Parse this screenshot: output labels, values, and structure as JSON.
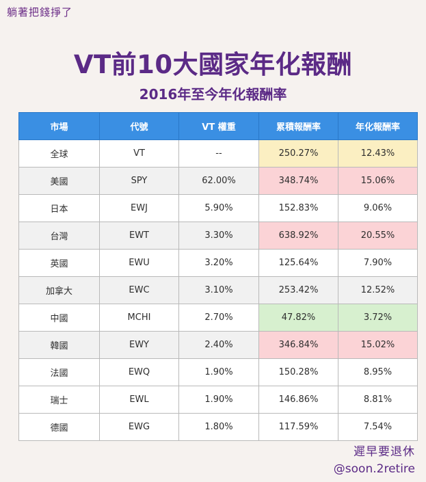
{
  "header": {
    "brand": "躺著把錢掙了",
    "title": "VT前10大國家年化報酬",
    "subtitle": "2016年至今年化報酬率"
  },
  "table": {
    "columns": [
      "市場",
      "代號",
      "VT 權重",
      "累積報酬率",
      "年化報酬率"
    ],
    "rows": [
      {
        "market": "全球",
        "ticker": "VT",
        "weight": "--",
        "cumulative": "250.27%",
        "annualized": "12.43%",
        "highlight": "yellow"
      },
      {
        "market": "美國",
        "ticker": "SPY",
        "weight": "62.00%",
        "cumulative": "348.74%",
        "annualized": "15.06%",
        "highlight": "red"
      },
      {
        "market": "日本",
        "ticker": "EWJ",
        "weight": "5.90%",
        "cumulative": "152.83%",
        "annualized": "9.06%",
        "highlight": "none"
      },
      {
        "market": "台灣",
        "ticker": "EWT",
        "weight": "3.30%",
        "cumulative": "638.92%",
        "annualized": "20.55%",
        "highlight": "red"
      },
      {
        "market": "英國",
        "ticker": "EWU",
        "weight": "3.20%",
        "cumulative": "125.64%",
        "annualized": "7.90%",
        "highlight": "none"
      },
      {
        "market": "加拿大",
        "ticker": "EWC",
        "weight": "3.10%",
        "cumulative": "253.42%",
        "annualized": "12.52%",
        "highlight": "none"
      },
      {
        "market": "中國",
        "ticker": "MCHI",
        "weight": "2.70%",
        "cumulative": "47.82%",
        "annualized": "3.72%",
        "highlight": "green"
      },
      {
        "market": "韓國",
        "ticker": "EWY",
        "weight": "2.40%",
        "cumulative": "346.84%",
        "annualized": "15.02%",
        "highlight": "red"
      },
      {
        "market": "法國",
        "ticker": "EWQ",
        "weight": "1.90%",
        "cumulative": "150.28%",
        "annualized": "8.95%",
        "highlight": "none"
      },
      {
        "market": "瑞士",
        "ticker": "EWL",
        "weight": "1.90%",
        "cumulative": "146.86%",
        "annualized": "8.81%",
        "highlight": "none"
      },
      {
        "market": "德國",
        "ticker": "EWG",
        "weight": "1.80%",
        "cumulative": "117.59%",
        "annualized": "7.54%",
        "highlight": "none"
      }
    ]
  },
  "footer": {
    "brand": "遲早要退休",
    "handle": "@soon.2retire"
  },
  "colors": {
    "header_bg": "#3a8fe3",
    "title": "#5b2a86",
    "highlight_yellow": "#fbefc2",
    "highlight_red": "#fbd3d6",
    "highlight_green": "#d7f0cf"
  }
}
